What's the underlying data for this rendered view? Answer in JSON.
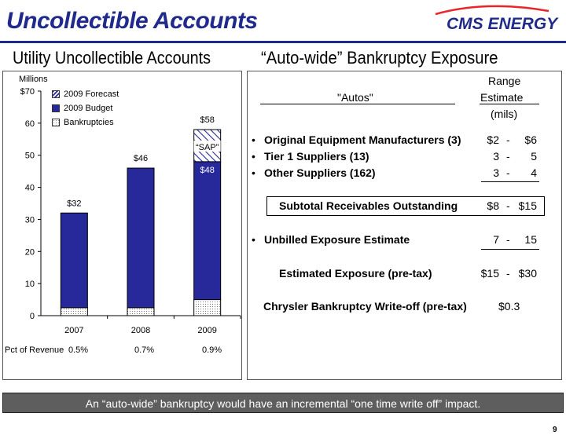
{
  "page": {
    "title": "Uncollectible Accounts",
    "logo_text": "CMS ENERGY",
    "page_number": "9",
    "banner": "An “auto-wide” bankruptcy would have an incremental “one time write off” impact.",
    "colors": {
      "brand": "#1f2a8c",
      "budget_bar": "#27289a",
      "banner_bg": "#5e5e5e",
      "logo_red": "#e8262a"
    }
  },
  "left_panel": {
    "heading": "Utility Uncollectible Accounts",
    "pct_label": "Pct of Revenue",
    "pct_values": [
      "0.5%",
      "0.7%",
      "0.9%"
    ]
  },
  "chart_data": {
    "type": "bar",
    "stacked": true,
    "ylabel": "Millions",
    "ylim": [
      0,
      70
    ],
    "yticks": [
      "$70",
      "60",
      "50",
      "40",
      "30",
      "20",
      "10",
      "0"
    ],
    "categories": [
      "2007",
      "2008",
      "2009"
    ],
    "series": [
      {
        "name": "Bankruptcies",
        "values": [
          2.5,
          2.5,
          5
        ],
        "pattern": "dotted"
      },
      {
        "name": "2009 Budget",
        "values": [
          29.5,
          43.5,
          43
        ],
        "color": "#27289a"
      },
      {
        "name": "2009 Forecast",
        "values": [
          0,
          0,
          10
        ],
        "pattern": "hatched"
      }
    ],
    "legend": [
      "2009 Forecast",
      "2009 Budget",
      "Bankruptcies"
    ],
    "legend_position": "top-left",
    "total_labels": [
      "$32",
      "$46",
      "$58"
    ],
    "inner_labels": {
      "forecast": "“SAP”",
      "budget_2009": "$48"
    },
    "grid": false
  },
  "right_panel": {
    "heading": "“Auto-wide” Bankruptcy Exposure",
    "col_autos": "\"Autos\"",
    "range_l1": "Range",
    "range_l2": "Estimate",
    "range_l3": "(mils)",
    "rows": [
      {
        "bullet": "•",
        "label": "Original Equipment Manufacturers (3)",
        "low": "$2",
        "dash": "-",
        "high": "$6"
      },
      {
        "bullet": "•",
        "label": "Tier 1 Suppliers (13)",
        "low": "3",
        "dash": "-",
        "high": "5"
      },
      {
        "bullet": "•",
        "label": "Other Suppliers (162)",
        "low": "3",
        "dash": "-",
        "high": "4"
      }
    ],
    "subtotal": {
      "label": "Subtotal Receivables Outstanding",
      "low": "$8",
      "dash": "-",
      "high": "$15"
    },
    "unbilled": {
      "bullet": "•",
      "label": "Unbilled Exposure Estimate",
      "low": "7",
      "dash": "-",
      "high": "15"
    },
    "estimated": {
      "label": "Estimated Exposure (pre-tax)",
      "low": "$15",
      "dash": "-",
      "high": "$30"
    },
    "chrysler": {
      "label": "Chrysler Bankruptcy Write-off (pre-tax)",
      "value": "$0.3"
    }
  }
}
